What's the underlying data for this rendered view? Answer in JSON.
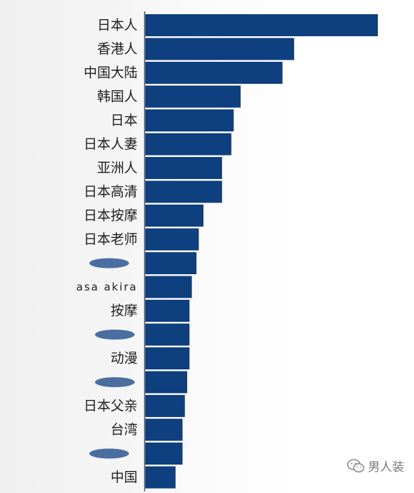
{
  "chart_data": {
    "type": "bar",
    "orientation": "horizontal",
    "categories": [
      "日本人",
      "香港人",
      "中国大陆",
      "韩国人",
      "日本",
      "日本人妻",
      "亚洲人",
      "日本高清",
      "日本按摩",
      "日本老师",
      "",
      "asa akira",
      "按摩",
      "",
      "动漫",
      "",
      "日本父亲",
      "台湾",
      "",
      "中国"
    ],
    "values": [
      100,
      64,
      59,
      41,
      38,
      37,
      33,
      33,
      25,
      23,
      22,
      20,
      19,
      19,
      19,
      18,
      17,
      16,
      16,
      13
    ],
    "xlim": [
      0,
      100
    ],
    "grid": false,
    "bar_color": "#0e3f7e"
  },
  "watermark": {
    "icon": "wechat-icon",
    "text": "男人装"
  }
}
